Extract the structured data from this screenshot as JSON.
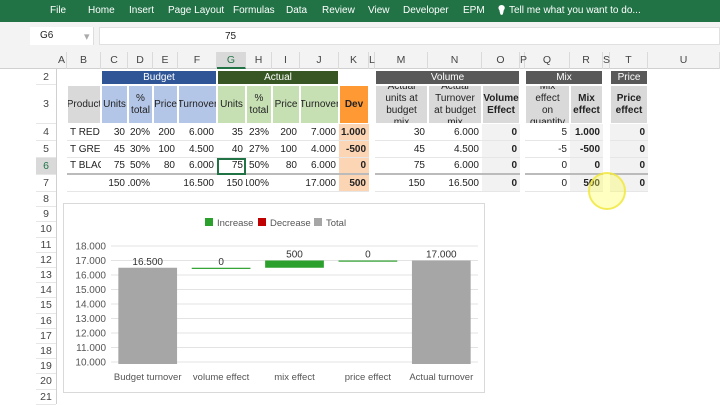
{
  "ribbon": {
    "tabs": [
      "File",
      "Home",
      "Insert",
      "Page Layout",
      "Formulas",
      "Data",
      "Review",
      "View",
      "Developer",
      "EPM"
    ],
    "tell_me": "Tell me what you want to do..."
  },
  "formula_bar": {
    "name_box": "G6",
    "value": "75",
    "fx": "fx"
  },
  "columns": [
    "A",
    "B",
    "C",
    "D",
    "E",
    "F",
    "G",
    "H",
    "I",
    "J",
    "K",
    "L",
    "M",
    "N",
    "O",
    "P",
    "Q",
    "R",
    "S",
    "T",
    "U"
  ],
  "selected_cell": {
    "col": "G",
    "row": "6"
  },
  "row_numbers": [
    "2",
    "3",
    "4",
    "5",
    "6",
    "7",
    "8",
    "9",
    "10",
    "11",
    "12",
    "13",
    "14",
    "15",
    "16",
    "17",
    "18",
    "19",
    "20",
    "21"
  ],
  "grid": {
    "groups": {
      "budget": "Budget",
      "actual": "Actual",
      "volume": "Volume",
      "mix": "Mix",
      "price": "Price"
    },
    "headers": {
      "B": "Product",
      "C": "Units",
      "D": "% total",
      "E": "Price",
      "F": "Turnover",
      "G": "Units",
      "H": "% total",
      "I": "Price",
      "J": "Turnover",
      "K": "Dev",
      "M": "Actual units at budget mix",
      "N": "Actual Turnover at budget mix",
      "O": "Volume Effect",
      "Q": "Mix effect on quantity",
      "R": "Mix effect",
      "T": "Price effect"
    },
    "rows": [
      {
        "B": "T RED",
        "C": "30",
        "D": "20%",
        "E": "200",
        "F": "6.000",
        "G": "35",
        "H": "23%",
        "I": "200",
        "J": "7.000",
        "K": "1.000",
        "M": "30",
        "N": "6.000",
        "O": "0",
        "Q": "5",
        "R": "1.000",
        "T": "0"
      },
      {
        "B": "T GREEN",
        "C": "45",
        "D": "30%",
        "E": "100",
        "F": "4.500",
        "G": "40",
        "H": "27%",
        "I": "100",
        "J": "4.000",
        "K": "-500",
        "M": "45",
        "N": "4.500",
        "O": "0",
        "Q": "-5",
        "R": "-500",
        "T": "0"
      },
      {
        "B": "T BLACK",
        "C": "75",
        "D": "50%",
        "E": "80",
        "F": "6.000",
        "G": "75",
        "H": "50%",
        "I": "80",
        "J": "6.000",
        "K": "0",
        "M": "75",
        "N": "6.000",
        "O": "0",
        "Q": "0",
        "R": "0",
        "T": "0"
      },
      {
        "C": "150",
        "D": "100%",
        "F": "16.500",
        "G": "150",
        "H": "100%",
        "J": "17.000",
        "K": "500",
        "M": "150",
        "N": "16.500",
        "O": "0",
        "Q": "0",
        "R": "500",
        "T": "0"
      }
    ]
  },
  "colors": {
    "budget_dark": "#2f5597",
    "budget_light": "#b4c6e7",
    "actual_dark": "#375623",
    "actual_light": "#c6e0b4",
    "dev": "#ff9933",
    "dev_light": "#fcd5b4",
    "grey_dark": "#595959",
    "grey_light": "#d9d9d9",
    "increase": "#2ca02c",
    "decrease": "#c00000",
    "total": "#a6a6a6"
  },
  "chart_data": {
    "type": "bar",
    "subtype": "waterfall",
    "categories": [
      "Budget turnover",
      "volume effect",
      "mix effect",
      "price effect",
      "Actual turnover"
    ],
    "values": [
      16500,
      0,
      500,
      0,
      17000
    ],
    "kinds": [
      "total",
      "increase",
      "increase",
      "increase",
      "total"
    ],
    "data_labels": [
      "16.500",
      "0",
      "500",
      "0",
      "17.000"
    ],
    "legend": [
      "Increase",
      "Decrease",
      "Total"
    ],
    "legend_position": "top",
    "yticks": [
      "10.000",
      "11.000",
      "12.000",
      "13.000",
      "14.000",
      "15.000",
      "16.000",
      "17.000",
      "18.000"
    ],
    "ylim": [
      10000,
      18000
    ],
    "grid": true
  }
}
